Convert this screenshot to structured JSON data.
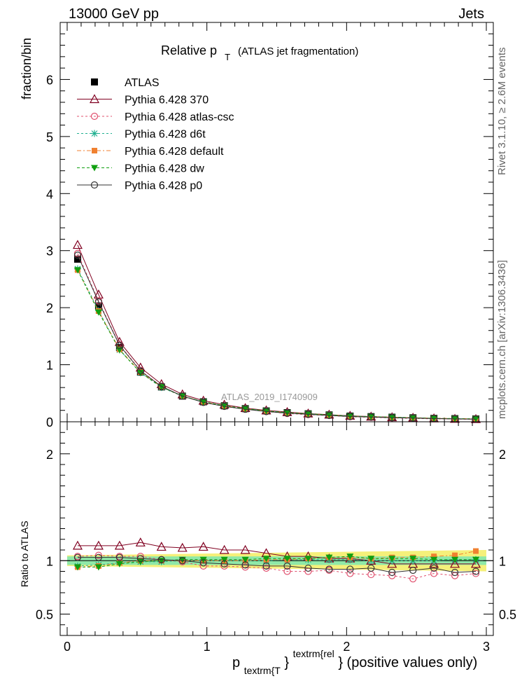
{
  "header": {
    "left": "13000 GeV pp",
    "right": "Jets"
  },
  "title": {
    "main": "Relative p",
    "sub": "T",
    "rest": "(ATLAS jet fragmentation)"
  },
  "side_labels": {
    "rivet": "Rivet 3.1.10, ≥ 2.6M events",
    "mcplots": "mcplots.cern.ch [arXiv:1306.3436]"
  },
  "watermark": "ATLAS_2019_I1740909",
  "chart_data": [
    {
      "type": "line",
      "panel": "main",
      "ylabel": "fraction/bin",
      "ylim": [
        0,
        7.0
      ],
      "xlim": [
        -0.05,
        3.05
      ],
      "yticks": [
        0,
        1,
        2,
        3,
        4,
        5,
        6
      ],
      "legend_position": "top-left",
      "x": [
        0.075,
        0.225,
        0.375,
        0.525,
        0.675,
        0.825,
        0.975,
        1.125,
        1.275,
        1.425,
        1.575,
        1.725,
        1.875,
        2.025,
        2.175,
        2.325,
        2.475,
        2.625,
        2.775,
        2.925
      ],
      "series": [
        {
          "name": "ATLAS",
          "color": "#000000",
          "marker": "square",
          "dash": "",
          "values": [
            2.85,
            2.03,
            1.3,
            0.87,
            0.61,
            0.45,
            0.35,
            0.28,
            0.23,
            0.19,
            0.16,
            0.14,
            0.12,
            0.1,
            0.09,
            0.08,
            0.07,
            0.06,
            0.055,
            0.05
          ]
        },
        {
          "name": "Pythia 6.428 370",
          "color": "#800020",
          "marker": "triangle-up-open",
          "dash": "",
          "values": [
            3.1,
            2.23,
            1.4,
            0.95,
            0.66,
            0.48,
            0.37,
            0.3,
            0.24,
            0.2,
            0.17,
            0.145,
            0.125,
            0.105,
            0.09,
            0.08,
            0.07,
            0.06,
            0.052,
            0.047
          ]
        },
        {
          "name": "Pythia 6.428 atlas-csc",
          "color": "#e0506e",
          "marker": "circle-open",
          "dash": "3,3",
          "values": [
            2.95,
            2.12,
            1.35,
            0.9,
            0.62,
            0.45,
            0.34,
            0.27,
            0.22,
            0.18,
            0.145,
            0.125,
            0.11,
            0.088,
            0.078,
            0.068,
            0.058,
            0.052,
            0.047,
            0.043
          ]
        },
        {
          "name": "Pythia 6.428 d6t",
          "color": "#20b090",
          "marker": "star",
          "dash": "3,3",
          "values": [
            2.68,
            1.95,
            1.26,
            0.86,
            0.6,
            0.45,
            0.35,
            0.28,
            0.23,
            0.19,
            0.16,
            0.14,
            0.12,
            0.1,
            0.09,
            0.08,
            0.07,
            0.06,
            0.055,
            0.05
          ]
        },
        {
          "name": "Pythia 6.428 default",
          "color": "#f08030",
          "marker": "square-filled",
          "dash": "6,3,2,3",
          "values": [
            2.66,
            1.94,
            1.27,
            0.87,
            0.61,
            0.45,
            0.35,
            0.28,
            0.23,
            0.19,
            0.16,
            0.14,
            0.12,
            0.1,
            0.09,
            0.08,
            0.072,
            0.063,
            0.057,
            0.053
          ]
        },
        {
          "name": "Pythia 6.428 dw",
          "color": "#10a010",
          "marker": "triangle-down-filled",
          "dash": "4,3",
          "values": [
            2.66,
            1.92,
            1.26,
            0.86,
            0.61,
            0.45,
            0.35,
            0.28,
            0.23,
            0.19,
            0.16,
            0.14,
            0.12,
            0.1,
            0.09,
            0.08,
            0.07,
            0.06,
            0.055,
            0.05
          ]
        },
        {
          "name": "Pythia 6.428 p0",
          "color": "#333333",
          "marker": "circle-open",
          "dash": "",
          "values": [
            2.92,
            2.1,
            1.34,
            0.89,
            0.62,
            0.45,
            0.34,
            0.27,
            0.22,
            0.18,
            0.15,
            0.13,
            0.11,
            0.092,
            0.083,
            0.071,
            0.064,
            0.056,
            0.049,
            0.045
          ]
        }
      ]
    },
    {
      "type": "line",
      "panel": "ratio",
      "ylabel": "Ratio to ATLAS",
      "xlabel_main": "p",
      "xlabel_sub": "textrm{T",
      "xlabel_sup": "textrm{rel",
      "xlabel_close": "}",
      "xlabel_rest": "} (positive values only)",
      "ylim": [
        0.3,
        2.3
      ],
      "xlim": [
        -0.05,
        3.05
      ],
      "yticks": [
        0.5,
        1,
        2
      ],
      "xticks": [
        0,
        1,
        2,
        3
      ],
      "band_inner": [
        0.96,
        1.04
      ],
      "band_outer_start": [
        0.95,
        1.05
      ],
      "band_outer_end": [
        0.9,
        1.1
      ],
      "x": [
        0.075,
        0.225,
        0.375,
        0.525,
        0.675,
        0.825,
        0.975,
        1.125,
        1.275,
        1.425,
        1.575,
        1.725,
        1.875,
        2.025,
        2.175,
        2.325,
        2.475,
        2.625,
        2.775,
        2.925
      ],
      "series": [
        {
          "name": "Pythia 6.428 370",
          "color": "#800020",
          "marker": "triangle-up-open",
          "dash": "",
          "values": [
            1.14,
            1.14,
            1.14,
            1.17,
            1.13,
            1.12,
            1.13,
            1.1,
            1.1,
            1.07,
            1.04,
            1.04,
            1.02,
            1.02,
            1.0,
            0.97,
            0.97,
            0.97,
            0.97,
            0.97
          ]
        },
        {
          "name": "Pythia 6.428 atlas-csc",
          "color": "#e0506e",
          "marker": "circle-open",
          "dash": "3,3",
          "values": [
            1.04,
            1.05,
            1.04,
            1.04,
            1.01,
            0.99,
            0.95,
            0.95,
            0.94,
            0.93,
            0.9,
            0.9,
            0.91,
            0.88,
            0.87,
            0.86,
            0.83,
            0.88,
            0.86,
            0.88
          ]
        },
        {
          "name": "Pythia 6.428 d6t",
          "color": "#20b090",
          "marker": "star",
          "dash": "3,3",
          "values": [
            0.95,
            0.96,
            0.98,
            0.99,
            0.99,
            1.0,
            1.0,
            1.0,
            1.0,
            1.0,
            1.01,
            1.01,
            1.01,
            1.01,
            1.0,
            1.0,
            1.0,
            1.0,
            1.01,
            1.01
          ]
        },
        {
          "name": "Pythia 6.428 default",
          "color": "#f08030",
          "marker": "square-filled",
          "dash": "6,3,2,3",
          "values": [
            0.94,
            0.95,
            0.98,
            1.0,
            1.0,
            1.0,
            1.0,
            1.0,
            1.0,
            1.01,
            1.01,
            1.02,
            1.03,
            1.03,
            1.02,
            1.03,
            1.03,
            1.04,
            1.05,
            1.09
          ]
        },
        {
          "name": "Pythia 6.428 dw",
          "color": "#10a010",
          "marker": "triangle-down-filled",
          "dash": "4,3",
          "values": [
            0.94,
            0.94,
            0.97,
            0.99,
            1.0,
            1.01,
            1.01,
            1.01,
            1.01,
            1.02,
            1.02,
            1.02,
            1.03,
            1.04,
            1.02,
            1.02,
            1.02,
            1.01,
            1.01,
            1.01
          ]
        },
        {
          "name": "Pythia 6.428 p0",
          "color": "#333333",
          "marker": "circle-open",
          "dash": "",
          "values": [
            1.03,
            1.03,
            1.03,
            1.02,
            1.01,
            1.0,
            0.98,
            0.97,
            0.96,
            0.95,
            0.95,
            0.93,
            0.92,
            0.92,
            0.93,
            0.89,
            0.91,
            0.93,
            0.89,
            0.9
          ]
        }
      ]
    }
  ]
}
